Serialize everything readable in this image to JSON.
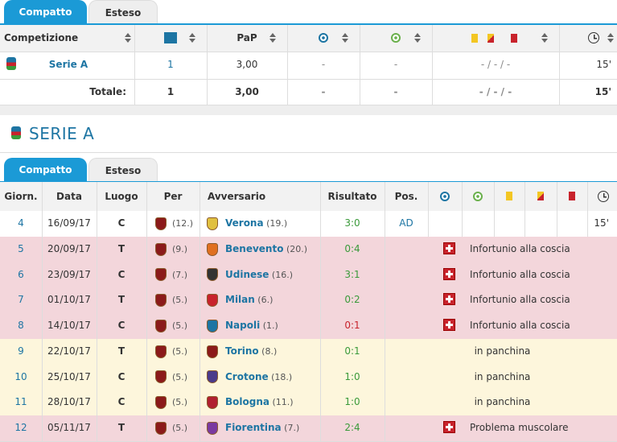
{
  "tabs": [
    "Compatto",
    "Esteso"
  ],
  "summary": {
    "headers": [
      "Competizione",
      "PaP"
    ],
    "row": {
      "competition": "Serie A",
      "apps": "1",
      "ppm": "3,00",
      "goals": "-",
      "assists": "-",
      "cards": "- / - / -",
      "minutes": "15'"
    },
    "total": {
      "label": "Totale:",
      "apps": "1",
      "ppm": "3,00",
      "goals": "-",
      "assists": "-",
      "cards": "- / - / -",
      "minutes": "15'"
    }
  },
  "section_title": "SERIE A",
  "match_tabs": [
    "Compatto",
    "Esteso"
  ],
  "matches": {
    "headers": [
      "Giorn.",
      "Data",
      "Luogo",
      "Per",
      "Avversario",
      "Risultato",
      "Pos."
    ],
    "rows": [
      {
        "matchday": "4",
        "date": "16/09/17",
        "venue": "C",
        "rank": "(12.)",
        "opponent": "Verona",
        "opponent_rank": "(19.)",
        "result": "3:0",
        "result_color": "#3a9a3a",
        "position": "AD",
        "minutes": "15'",
        "status": "played"
      },
      {
        "matchday": "5",
        "date": "20/09/17",
        "venue": "T",
        "rank": "(9.)",
        "opponent": "Benevento",
        "opponent_rank": "(20.)",
        "result": "0:4",
        "result_color": "#3a9a3a",
        "note": "Infortunio alla coscia",
        "status": "injury"
      },
      {
        "matchday": "6",
        "date": "23/09/17",
        "venue": "C",
        "rank": "(7.)",
        "opponent": "Udinese",
        "opponent_rank": "(16.)",
        "result": "3:1",
        "result_color": "#3a9a3a",
        "note": "Infortunio alla coscia",
        "status": "injury"
      },
      {
        "matchday": "7",
        "date": "01/10/17",
        "venue": "T",
        "rank": "(5.)",
        "opponent": "Milan",
        "opponent_rank": "(6.)",
        "result": "0:2",
        "result_color": "#3a9a3a",
        "note": "Infortunio alla coscia",
        "status": "injury"
      },
      {
        "matchday": "8",
        "date": "14/10/17",
        "venue": "C",
        "rank": "(5.)",
        "opponent": "Napoli",
        "opponent_rank": "(1.)",
        "result": "0:1",
        "result_color": "#c8232c",
        "note": "Infortunio alla coscia",
        "status": "injury"
      },
      {
        "matchday": "9",
        "date": "22/10/17",
        "venue": "T",
        "rank": "(5.)",
        "opponent": "Torino",
        "opponent_rank": "(8.)",
        "result": "0:1",
        "result_color": "#3a9a3a",
        "note": "in panchina",
        "status": "bench"
      },
      {
        "matchday": "10",
        "date": "25/10/17",
        "venue": "C",
        "rank": "(5.)",
        "opponent": "Crotone",
        "opponent_rank": "(18.)",
        "result": "1:0",
        "result_color": "#3a9a3a",
        "note": "in panchina",
        "status": "bench"
      },
      {
        "matchday": "11",
        "date": "28/10/17",
        "venue": "C",
        "rank": "(5.)",
        "opponent": "Bologna",
        "opponent_rank": "(11.)",
        "result": "1:0",
        "result_color": "#3a9a3a",
        "note": "in panchina",
        "status": "bench"
      },
      {
        "matchday": "12",
        "date": "05/11/17",
        "venue": "T",
        "rank": "(5.)",
        "opponent": "Fiorentina",
        "opponent_rank": "(7.)",
        "result": "2:4",
        "result_color": "#3a9a3a",
        "note": "Problema muscolare",
        "status": "injury"
      }
    ]
  }
}
